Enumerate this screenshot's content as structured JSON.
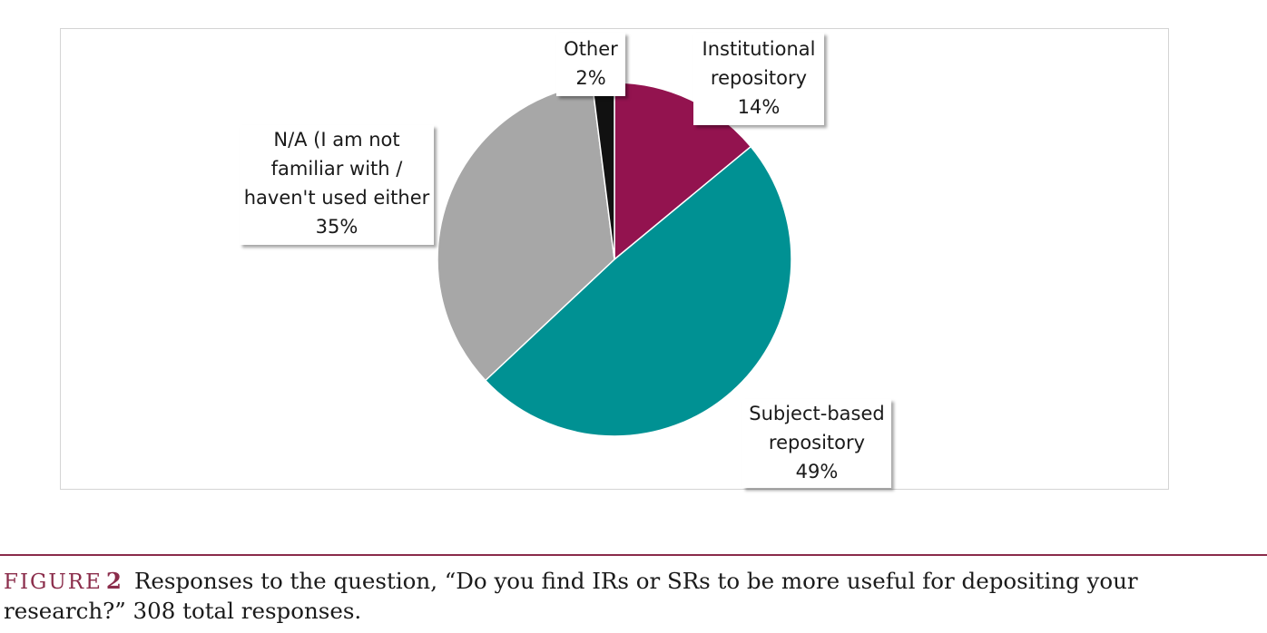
{
  "chart_data": {
    "type": "pie",
    "title": "",
    "slices": [
      {
        "label": "Institutional repository",
        "label_lines": [
          "Institutional",
          "repository"
        ],
        "value": 14,
        "value_label": "14%",
        "color": "#93134f"
      },
      {
        "label": "Subject-based repository",
        "label_lines": [
          "Subject-based",
          "repository"
        ],
        "value": 49,
        "value_label": "49%",
        "color": "#009193"
      },
      {
        "label": "N/A (I am not familiar with / haven't used either",
        "label_lines": [
          "N/A (I am not",
          "familiar with /",
          "haven't used either"
        ],
        "value": 35,
        "value_label": "35%",
        "color": "#a7a7a7"
      },
      {
        "label": "Other",
        "label_lines": [
          "Other"
        ],
        "value": 2,
        "value_label": "2%",
        "color": "#111111"
      }
    ],
    "start_angle_deg": 0,
    "direction": "clockwise",
    "legend": "none"
  },
  "caption": {
    "figure_label": "FIGURE",
    "figure_number": "2",
    "text": "Responses to the question, “Do you find IRs or SRs to be more useful for depositing your research?” 308 total responses."
  }
}
